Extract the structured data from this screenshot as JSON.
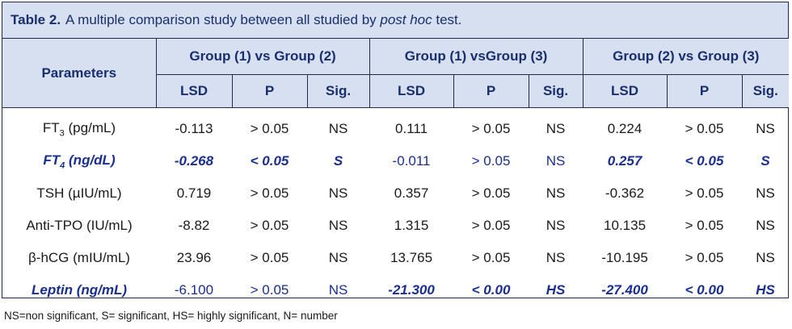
{
  "caption": {
    "label": "Table 2.",
    "text_before": "A multiple comparison study between all studied by ",
    "text_italic": "post hoc",
    "text_after": " test."
  },
  "header": {
    "parameters": "Parameters",
    "groups": [
      "Group (1) vs Group (2)",
      "Group (1) vsGroup (3)",
      "Group (2) vs Group (3)"
    ],
    "subcols": [
      "LSD",
      "P",
      "Sig."
    ]
  },
  "rows": [
    {
      "param": "FT",
      "sub": "3",
      "unit": " (pg/mL)",
      "highlight": false,
      "cells": [
        {
          "v": "-0.113",
          "b": false
        },
        {
          "v": "> 0.05",
          "b": false
        },
        {
          "v": "NS",
          "b": false
        },
        {
          "v": "0.111",
          "b": false
        },
        {
          "v": "> 0.05",
          "b": false
        },
        {
          "v": "NS",
          "b": false
        },
        {
          "v": "0.224",
          "b": false
        },
        {
          "v": "> 0.05",
          "b": false
        },
        {
          "v": "NS",
          "b": false
        }
      ]
    },
    {
      "param": "FT",
      "sub": "4",
      "unit": " (ng/dL)",
      "highlight": true,
      "cells": [
        {
          "v": "-0.268",
          "b": true
        },
        {
          "v": "< 0.05",
          "b": true
        },
        {
          "v": "S",
          "b": true
        },
        {
          "v": "-0.011",
          "b": false
        },
        {
          "v": "> 0.05",
          "b": false
        },
        {
          "v": "NS",
          "b": false
        },
        {
          "v": "0.257",
          "b": true
        },
        {
          "v": "< 0.05",
          "b": true
        },
        {
          "v": "S",
          "b": true
        }
      ]
    },
    {
      "param": "TSH (µIU/mL)",
      "sub": "",
      "unit": "",
      "highlight": false,
      "cells": [
        {
          "v": "0.719",
          "b": false
        },
        {
          "v": "> 0.05",
          "b": false
        },
        {
          "v": "NS",
          "b": false
        },
        {
          "v": "0.357",
          "b": false
        },
        {
          "v": "> 0.05",
          "b": false
        },
        {
          "v": "NS",
          "b": false
        },
        {
          "v": "-0.362",
          "b": false
        },
        {
          "v": "> 0.05",
          "b": false
        },
        {
          "v": "NS",
          "b": false
        }
      ]
    },
    {
      "param": "Anti-TPO (IU/mL)",
      "sub": "",
      "unit": "",
      "highlight": false,
      "cells": [
        {
          "v": "-8.82",
          "b": false
        },
        {
          "v": "> 0.05",
          "b": false
        },
        {
          "v": "NS",
          "b": false
        },
        {
          "v": "1.315",
          "b": false
        },
        {
          "v": "> 0.05",
          "b": false
        },
        {
          "v": "NS",
          "b": false
        },
        {
          "v": "10.135",
          "b": false
        },
        {
          "v": "> 0.05",
          "b": false
        },
        {
          "v": "NS",
          "b": false
        }
      ]
    },
    {
      "param": "β-hCG (mIU/mL)",
      "sub": "",
      "unit": "",
      "highlight": false,
      "cells": [
        {
          "v": "23.96",
          "b": false
        },
        {
          "v": "> 0.05",
          "b": false
        },
        {
          "v": "NS",
          "b": false
        },
        {
          "v": "13.765",
          "b": false
        },
        {
          "v": "> 0.05",
          "b": false
        },
        {
          "v": "NS",
          "b": false
        },
        {
          "v": "-10.195",
          "b": false
        },
        {
          "v": "> 0.05",
          "b": false
        },
        {
          "v": "NS",
          "b": false
        }
      ]
    },
    {
      "param": "Leptin (ng/mL)",
      "sub": "",
      "unit": "",
      "highlight": true,
      "cells": [
        {
          "v": "-6.100",
          "b": false
        },
        {
          "v": "> 0.05",
          "b": false
        },
        {
          "v": "NS",
          "b": false
        },
        {
          "v": "-21.300",
          "b": true
        },
        {
          "v": "< 0.00",
          "b": true
        },
        {
          "v": "HS",
          "b": true
        },
        {
          "v": "-27.400",
          "b": true
        },
        {
          "v": "< 0.00",
          "b": true
        },
        {
          "v": "HS",
          "b": true
        }
      ]
    }
  ],
  "footnote": "NS=non significant, S= significant, HS= highly significant, N= number"
}
